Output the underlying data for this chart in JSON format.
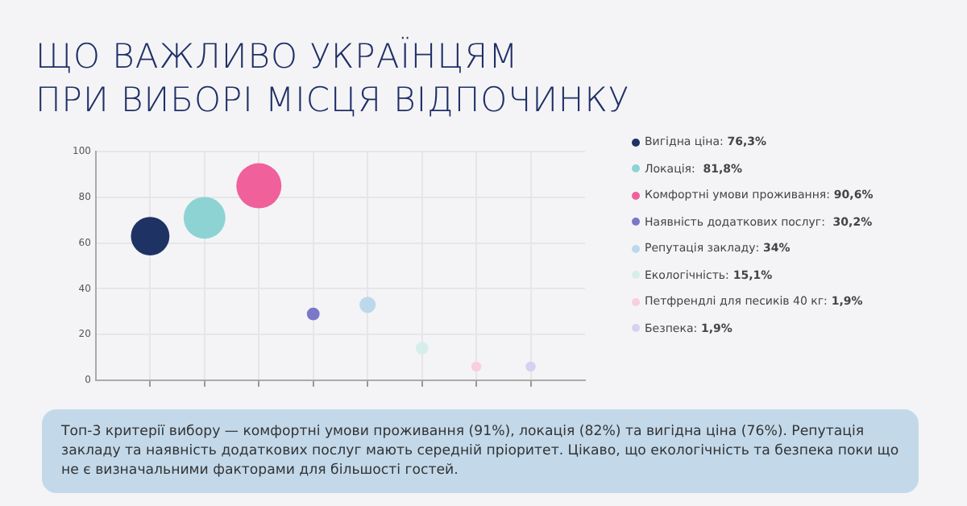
{
  "chart_data": {
    "type": "bubble",
    "title": "ЩО ВАЖЛИВО УКРАЇНЦЯМ\nПРИ ВИБОРІ МІСЦЯ ВІДПОЧИНКУ",
    "categories": [
      null,
      null,
      null,
      null,
      null,
      null,
      null,
      null
    ],
    "series": [
      {
        "name": "Вигідна ціна: 76,3%",
        "color": "#1e3264",
        "values": [
          63,
          null,
          null,
          null,
          null,
          null,
          null,
          null
        ],
        "sizes": [
          0.73,
          null,
          null,
          null,
          null,
          null,
          null,
          null
        ]
      },
      {
        "name": "Локація:  81,8%",
        "color": "#8dd3d3",
        "values": [
          null,
          71,
          null,
          null,
          null,
          null,
          null,
          null
        ],
        "sizes": [
          null,
          0.86,
          null,
          null,
          null,
          null,
          null,
          null
        ]
      },
      {
        "name": "Комфортні умови проживання: 90,6%",
        "color": "#f0609a",
        "values": [
          null,
          null,
          85,
          null,
          null,
          null,
          null,
          null
        ],
        "sizes": [
          null,
          null,
          1,
          null,
          null,
          null,
          null,
          null
        ]
      },
      {
        "name": "Наявність додаткових послуг:  30,2%",
        "color": "#7b78c8",
        "values": [
          null,
          null,
          null,
          29,
          null,
          null,
          null,
          null
        ],
        "sizes": [
          null,
          null,
          null,
          0.08,
          null,
          null,
          null,
          null
        ]
      },
      {
        "name": "Репутація закладу: 34%",
        "color": "#bcd9ec",
        "values": [
          null,
          null,
          null,
          null,
          33,
          null,
          null,
          null
        ],
        "sizes": [
          null,
          null,
          null,
          null,
          0.13,
          null,
          null,
          null
        ]
      },
      {
        "name": "Екологічність: 15,1%",
        "color": "#d6eeea",
        "values": [
          null,
          null,
          null,
          null,
          null,
          14,
          null,
          null
        ],
        "sizes": [
          null,
          null,
          null,
          null,
          null,
          0.08,
          null,
          null
        ]
      },
      {
        "name": "Петфрендлі для песиків 40 кг: 1,9%",
        "color": "#f9cfdc",
        "values": [
          null,
          null,
          null,
          null,
          null,
          null,
          6,
          null
        ],
        "sizes": [
          null,
          null,
          null,
          null,
          null,
          null,
          0.05,
          null
        ]
      },
      {
        "name": "Безпека: 1,9%",
        "color": "#d5d1f0",
        "values": [
          null,
          null,
          null,
          null,
          null,
          null,
          null,
          6
        ],
        "sizes": [
          null,
          null,
          null,
          null,
          null,
          null,
          null,
          0.05
        ]
      }
    ],
    "ylim": [
      0,
      100
    ],
    "yticks": [
      0,
      20,
      40,
      60,
      80,
      100
    ],
    "grid": true,
    "legend": "right",
    "tick_labels": "y",
    "annotations": [
      "Топ-3 критерії вибору — комфортні умови проживання (91%), локація (82%) та вигідна ціна (76%). Репутація закладу та наявність додаткових послуг мають середній пріоритет. Цікаво, що екологічність та безпека поки що не є визначальними факторами для більшості гостей."
    ]
  }
}
